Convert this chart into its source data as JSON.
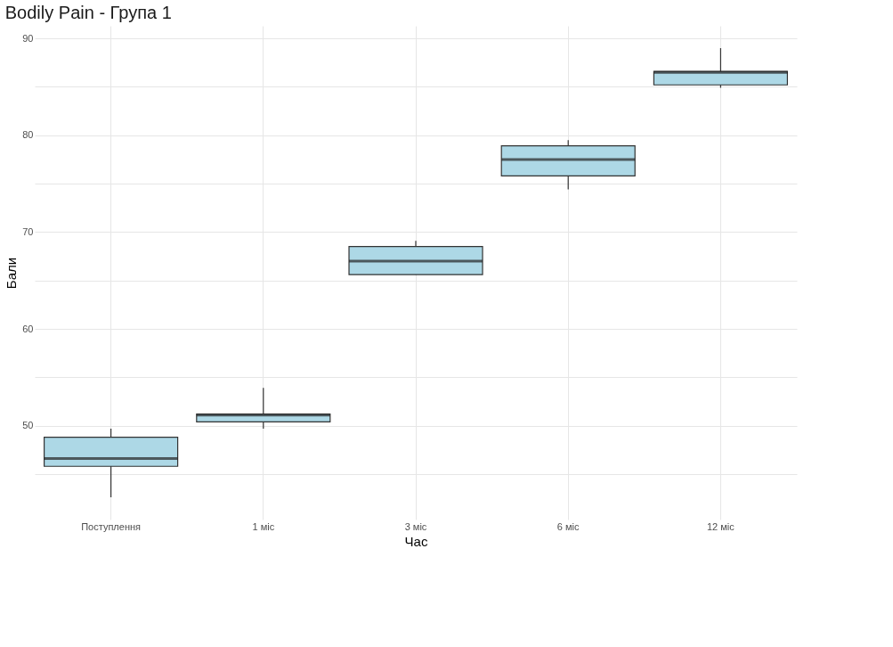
{
  "chart_data": {
    "type": "box",
    "title": "Bodily Pain - Група 1",
    "xlabel": "Час",
    "ylabel": "Бали",
    "categories": [
      "Поступлення",
      "1 міс",
      "3 міс",
      "6 міс",
      "12 міс"
    ],
    "boxes": [
      {
        "low": 42.6,
        "q1": 45.8,
        "median": 46.6,
        "q3": 48.8,
        "high": 49.7
      },
      {
        "low": 49.7,
        "q1": 50.4,
        "median": 51.1,
        "q3": 51.2,
        "high": 53.9
      },
      {
        "low": 65.6,
        "q1": 65.6,
        "median": 67.0,
        "q3": 68.5,
        "high": 69.1
      },
      {
        "low": 74.4,
        "q1": 75.8,
        "median": 77.5,
        "q3": 78.9,
        "high": 79.5
      },
      {
        "low": 84.9,
        "q1": 85.2,
        "median": 86.5,
        "q3": 86.6,
        "high": 89.0
      }
    ],
    "color": "#add8e6",
    "ylim": [
      40.3,
      91.3
    ],
    "yticks": [
      {
        "value": 45,
        "label": null
      },
      50,
      {
        "value": 55,
        "label": null
      },
      60,
      {
        "value": 65,
        "label": null
      },
      70,
      {
        "value": 75,
        "label": null
      },
      80,
      {
        "value": 85,
        "label": null
      },
      90
    ],
    "grid": true
  }
}
